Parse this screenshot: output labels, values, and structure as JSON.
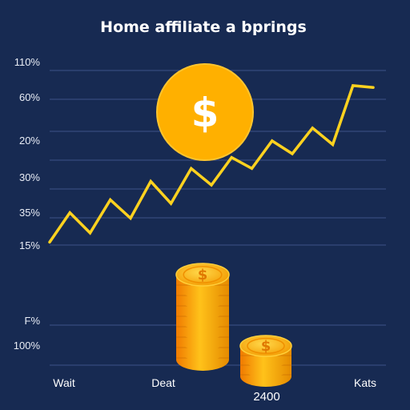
{
  "chart_data": {
    "type": "line",
    "title": "Home affiliate a bprings",
    "y_tick_labels": [
      "110%",
      "60%",
      "20%",
      "30%",
      "35%",
      "15%",
      "F%",
      "100%"
    ],
    "x_tick_labels": [
      "Wait",
      "Deat",
      "Kats"
    ],
    "bottom_label": "2400",
    "series": [
      {
        "color": "#ffd21f",
        "values": [
          12,
          28,
          17,
          35,
          25,
          45,
          33,
          52,
          43,
          58,
          52,
          67,
          60,
          74,
          65,
          97,
          96
        ]
      }
    ],
    "grid": true,
    "icons": [
      "dollar-coin-icon",
      "coin-stack-icon",
      "coin-stack-icon"
    ]
  },
  "colors": {
    "background": "#172a52",
    "gridline": "#3c5288",
    "line": "#ffd21f",
    "coin": "#ffb000"
  }
}
